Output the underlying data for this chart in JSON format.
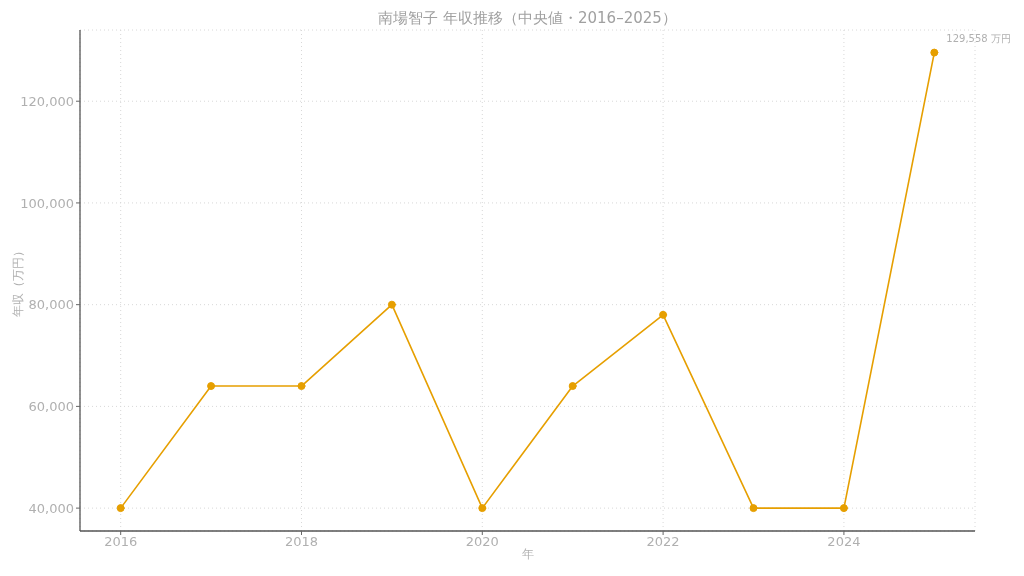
{
  "chart_data": {
    "type": "line",
    "title": "南場智子 年収推移（中央値・2016–2025）",
    "xlabel": "年",
    "ylabel": "年収（万円）",
    "x": [
      2016,
      2017,
      2018,
      2019,
      2020,
      2021,
      2022,
      2023,
      2024,
      2025
    ],
    "values": [
      40000,
      64000,
      64000,
      80000,
      40000,
      64000,
      78000,
      40000,
      40000,
      129558
    ],
    "color": "#e69f00",
    "value_labels": [
      null,
      null,
      null,
      null,
      null,
      null,
      null,
      null,
      null,
      "129,558 万円"
    ],
    "xlim": [
      2015.55,
      2025.45
    ],
    "xticks": [
      2016,
      2018,
      2020,
      2022,
      2024
    ],
    "ylim": [
      35500,
      134000
    ],
    "yticks": [
      {
        "value": 40000,
        "label": "40,000"
      },
      {
        "value": 60000,
        "label": "60,000"
      },
      {
        "value": 80000,
        "label": "80,000"
      },
      {
        "value": 100000,
        "label": "100,000"
      },
      {
        "value": 120000,
        "label": "120,000"
      }
    ],
    "grid": true,
    "marker": "circle",
    "line_style": "solid"
  }
}
